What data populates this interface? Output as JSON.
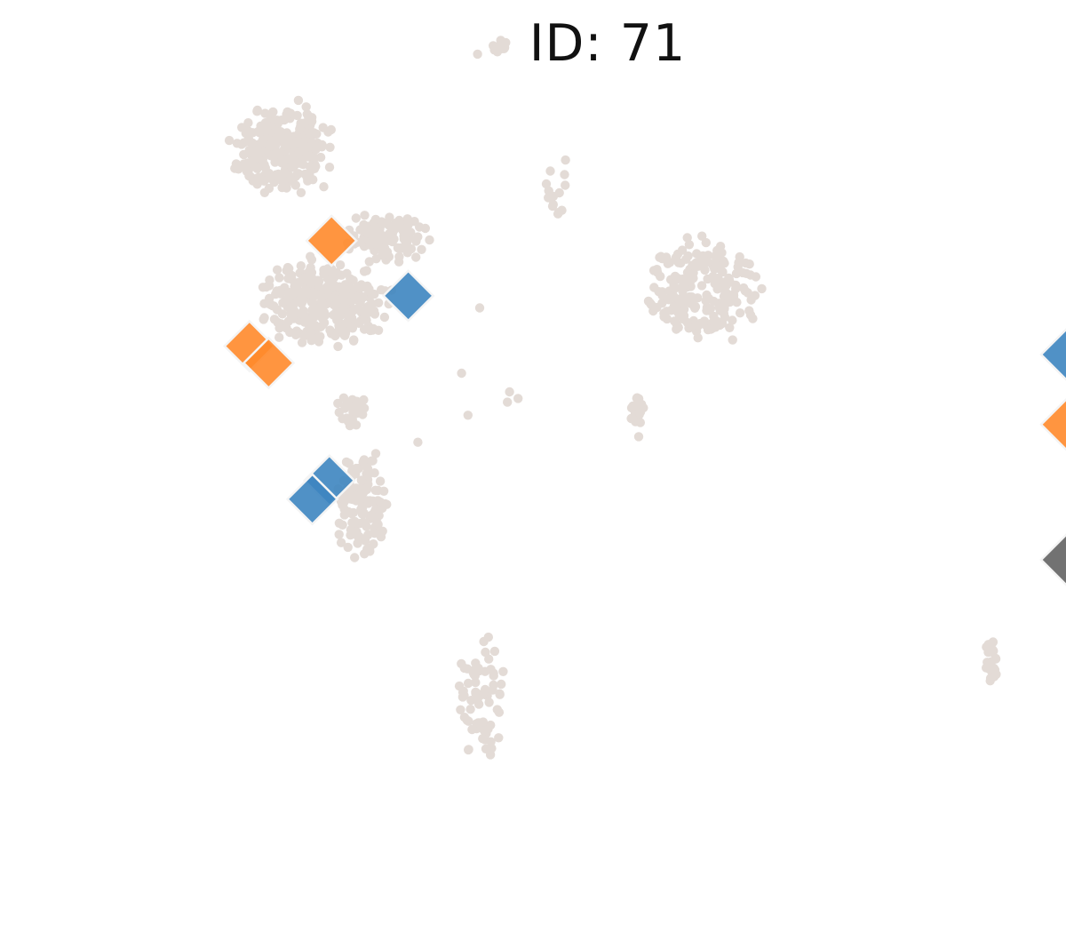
{
  "chart_data": {
    "type": "scatter",
    "title": "ID: 71",
    "xlabel": "",
    "ylabel": "",
    "axes_visible": false,
    "grid": false,
    "xlim": [
      0,
      100
    ],
    "ylim": [
      0,
      100
    ],
    "background_color": "#e3dbd6",
    "colors": {
      "blue": "#3d85c0",
      "orange": "#ff8a2b",
      "gray": "#636363",
      "edge": "#f4f4f4"
    },
    "background_clusters": [
      {
        "name": "cluster-a-top",
        "cx": 26.7,
        "cy": 84.0,
        "rx": 5.5,
        "ry": 5.7,
        "n": 280,
        "seed": 11
      },
      {
        "name": "cluster-a-mid",
        "cx": 30.5,
        "cy": 67.5,
        "rx": 7.0,
        "ry": 5.5,
        "n": 330,
        "seed": 12
      },
      {
        "name": "cluster-a-right",
        "cx": 36.0,
        "cy": 74.5,
        "rx": 4.5,
        "ry": 3.0,
        "n": 110,
        "seed": 13
      },
      {
        "name": "cluster-a-tail",
        "cx": 34.0,
        "cy": 46.0,
        "rx": 3.0,
        "ry": 6.5,
        "n": 120,
        "seed": 14
      },
      {
        "name": "cluster-a-neck",
        "cx": 33.0,
        "cy": 56.0,
        "rx": 1.6,
        "ry": 2.5,
        "n": 30,
        "seed": 15
      },
      {
        "name": "cluster-b",
        "cx": 66.0,
        "cy": 69.0,
        "rx": 6.5,
        "ry": 6.5,
        "n": 210,
        "seed": 21
      },
      {
        "name": "cluster-b-stem",
        "cx": 59.8,
        "cy": 55.5,
        "rx": 0.8,
        "ry": 3.2,
        "n": 22,
        "seed": 22
      },
      {
        "name": "cluster-c",
        "cx": 45.0,
        "cy": 25.0,
        "rx": 2.8,
        "ry": 7.5,
        "n": 70,
        "seed": 31
      },
      {
        "name": "cluster-d",
        "cx": 93.0,
        "cy": 29.0,
        "rx": 0.7,
        "ry": 3.2,
        "n": 26,
        "seed": 41
      },
      {
        "name": "cluster-e",
        "cx": 46.8,
        "cy": 95.0,
        "rx": 1.0,
        "ry": 1.0,
        "n": 14,
        "seed": 51
      },
      {
        "name": "cluster-f",
        "cx": 52.5,
        "cy": 80.0,
        "rx": 1.4,
        "ry": 5.0,
        "n": 14,
        "seed": 61
      }
    ],
    "scattered_points": [
      {
        "x": 45.0,
        "y": 67.0
      },
      {
        "x": 43.3,
        "y": 60.0
      },
      {
        "x": 43.9,
        "y": 55.5
      },
      {
        "x": 47.8,
        "y": 58.0
      },
      {
        "x": 48.6,
        "y": 57.3
      },
      {
        "x": 47.6,
        "y": 56.9
      },
      {
        "x": 39.2,
        "y": 52.6
      },
      {
        "x": 44.8,
        "y": 94.2
      }
    ],
    "highlighted": [
      {
        "group": "orange",
        "x": 31.1,
        "y": 74.2
      },
      {
        "group": "blue",
        "x": 38.3,
        "y": 68.3
      },
      {
        "group": "orange",
        "x": 23.4,
        "y": 62.9
      },
      {
        "group": "orange",
        "x": 25.2,
        "y": 61.1
      },
      {
        "group": "blue",
        "x": 30.9,
        "y": 48.5
      },
      {
        "group": "blue",
        "x": 29.3,
        "y": 46.5
      },
      {
        "group": "blue",
        "x": 100.0,
        "y": 62.0
      },
      {
        "group": "orange",
        "x": 100.0,
        "y": 54.5
      },
      {
        "group": "gray",
        "x": 100.0,
        "y": 40.0
      }
    ]
  }
}
